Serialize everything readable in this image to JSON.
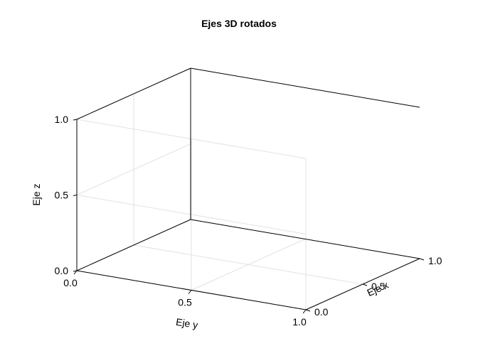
{
  "chart_data": {
    "type": "scatter",
    "title": "Ejes 3D rotados",
    "projection": "3d",
    "series": [],
    "axes": {
      "x": {
        "label": "Eje x",
        "range": [
          0.0,
          1.0
        ],
        "ticks": [
          "0.0",
          "0.5",
          "1.0"
        ],
        "tick_values": [
          0.0,
          0.5,
          1.0
        ]
      },
      "y": {
        "label": "Eje y",
        "range": [
          0.0,
          1.0
        ],
        "ticks": [
          "0.0",
          "0.5",
          "1.0"
        ],
        "tick_values": [
          0.0,
          0.5,
          1.0
        ]
      },
      "z": {
        "label": "Eje z",
        "range": [
          0.0,
          1.0
        ],
        "ticks": [
          "0.0",
          "0.5",
          "1.0"
        ],
        "tick_values": [
          0.0,
          0.5,
          1.0
        ]
      }
    },
    "grid": true,
    "legend": "none"
  },
  "colors": {
    "frame": "#000000",
    "grid": "#e2e2e2",
    "background": "#ffffff"
  }
}
